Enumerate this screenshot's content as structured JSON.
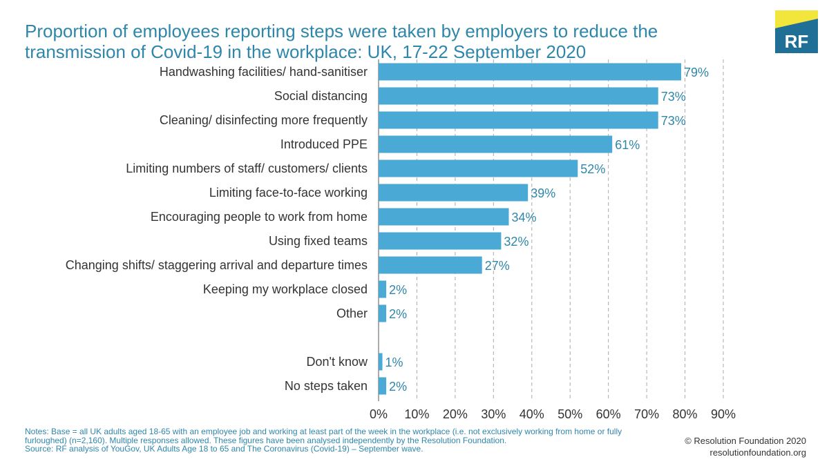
{
  "title": "Proportion of employees reporting steps were taken by employers to reduce the transmission of Covid-19 in the workplace: UK, 17-22 September 2020",
  "logo": {
    "text": "RF",
    "color_dark": "#1f6f96",
    "color_yellow": "#f2e63c"
  },
  "colors": {
    "bar": "#4ba9d6",
    "label": "#2e86ab",
    "title": "#2e86ab",
    "axis_text": "#333333",
    "grid": "#aaaaaa"
  },
  "chart_data": {
    "type": "bar",
    "orientation": "horizontal",
    "categories": [
      "Handwashing facilities/ hand-sanitiser",
      "Social distancing",
      "Cleaning/ disinfecting more frequently",
      "Introduced PPE",
      "Limiting numbers of staff/ customers/ clients",
      "Limiting face-to-face working",
      "Encouraging people to work from home",
      "Using fixed teams",
      "Changing shifts/ staggering arrival and departure times",
      "Keeping my workplace closed",
      "Other",
      "",
      "Don't know",
      "No steps taken"
    ],
    "values": [
      79,
      73,
      73,
      61,
      52,
      39,
      34,
      32,
      27,
      2,
      2,
      null,
      1,
      2
    ],
    "data_labels": [
      "79%",
      "73%",
      "73%",
      "61%",
      "52%",
      "39%",
      "34%",
      "32%",
      "27%",
      "2%",
      "2%",
      "",
      "1%",
      "2%"
    ],
    "xlim": [
      0,
      90
    ],
    "xticks": [
      0,
      10,
      20,
      30,
      40,
      50,
      60,
      70,
      80,
      90
    ],
    "xtick_labels": [
      "0%",
      "10%",
      "20%",
      "30%",
      "40%",
      "50%",
      "60%",
      "70%",
      "80%",
      "90%"
    ],
    "grid": "vertical dashed",
    "legend": "none"
  },
  "notes": [
    "Notes: Base = all UK adults aged 18-65 with an employee job and working at least part of the week in the workplace (i.e. not exclusively working from home or fully",
    "furloughed) (n=2,160). Multiple responses allowed. These figures have been analysed independently by the Resolution Foundation.",
    "Source: RF analysis of YouGov, UK Adults Age 18 to 65 and The Coronavirus (Covid-19) – September wave."
  ],
  "credit": {
    "line1": "© Resolution Foundation 2020",
    "line2": "resolutionfoundation.org"
  }
}
